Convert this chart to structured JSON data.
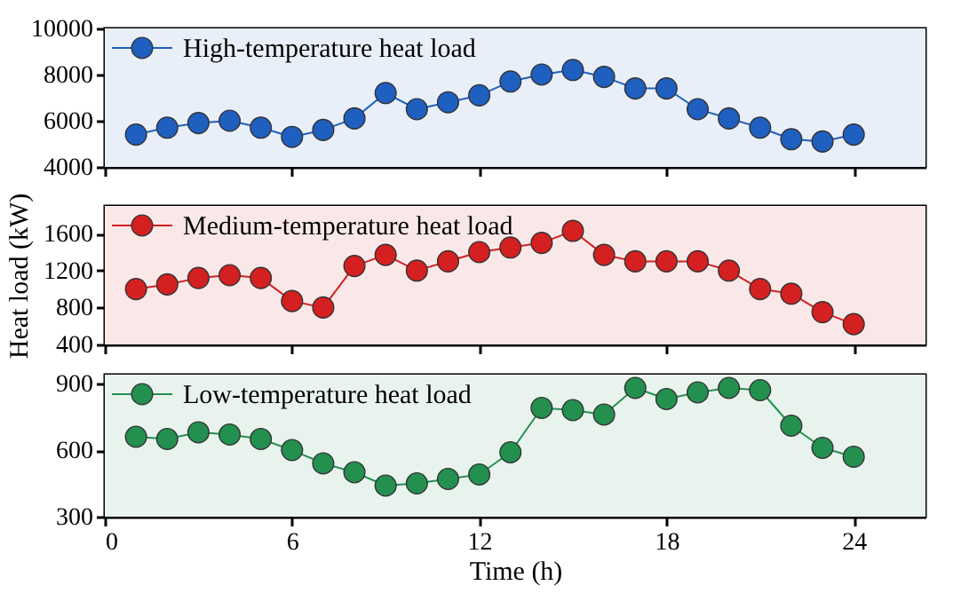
{
  "chart_data": [
    {
      "type": "line",
      "x": [
        1,
        2,
        3,
        4,
        5,
        6,
        7,
        8,
        9,
        10,
        11,
        12,
        13,
        14,
        15,
        16,
        17,
        18,
        19,
        20,
        21,
        22,
        23,
        24
      ],
      "xlim": [
        0,
        26.3
      ],
      "xticks": [
        0,
        6,
        12,
        18,
        24
      ],
      "ylim": [
        4000,
        10000
      ],
      "yticks": [
        4000,
        6000,
        8000,
        10000
      ],
      "tick_labels": "y",
      "marker": "circle",
      "legend": "top left",
      "grid": false,
      "series": [
        {
          "name": "High-temperature heat load",
          "color": "#1f5fbf",
          "values": [
            5400,
            5700,
            5900,
            6000,
            5700,
            5300,
            5600,
            6100,
            7200,
            6500,
            6800,
            7100,
            7700,
            8000,
            8200,
            7900,
            7400,
            7400,
            6500,
            6100,
            5700,
            5200,
            5100,
            5400
          ]
        }
      ]
    },
    {
      "type": "line",
      "x": [
        1,
        2,
        3,
        4,
        5,
        6,
        7,
        8,
        9,
        10,
        11,
        12,
        13,
        14,
        15,
        16,
        17,
        18,
        19,
        20,
        21,
        22,
        23,
        24
      ],
      "xlim": [
        0,
        26.3
      ],
      "xticks": [
        0,
        6,
        12,
        18,
        24
      ],
      "ylim": [
        400,
        1900
      ],
      "yticks": [
        400,
        800,
        1200,
        1600
      ],
      "ylabel": "Heat load (kW)",
      "tick_labels": "y",
      "marker": "circle",
      "legend": "top left",
      "grid": false,
      "series": [
        {
          "name": "Medium-temperature heat load",
          "color": "#d42020",
          "values": [
            1000,
            1050,
            1120,
            1150,
            1120,
            870,
            800,
            1250,
            1370,
            1200,
            1300,
            1400,
            1450,
            1500,
            1630,
            1370,
            1300,
            1300,
            1300,
            1200,
            1000,
            950,
            750,
            620
          ]
        }
      ]
    },
    {
      "type": "line",
      "x": [
        1,
        2,
        3,
        4,
        5,
        6,
        7,
        8,
        9,
        10,
        11,
        12,
        13,
        14,
        15,
        16,
        17,
        18,
        19,
        20,
        21,
        22,
        23,
        24
      ],
      "xlim": [
        0,
        26.3
      ],
      "xticks": [
        0,
        6,
        12,
        18,
        24
      ],
      "ylim": [
        300,
        940
      ],
      "yticks": [
        300,
        600,
        900
      ],
      "xlabel": "Time (h)",
      "marker": "circle",
      "legend": "top left",
      "grid": false,
      "series": [
        {
          "name": "Low-temperature heat load",
          "color": "#239050",
          "values": [
            660,
            650,
            680,
            670,
            650,
            600,
            540,
            500,
            440,
            450,
            470,
            490,
            590,
            790,
            780,
            760,
            880,
            830,
            860,
            880,
            870,
            710,
            610,
            570
          ]
        }
      ]
    }
  ]
}
